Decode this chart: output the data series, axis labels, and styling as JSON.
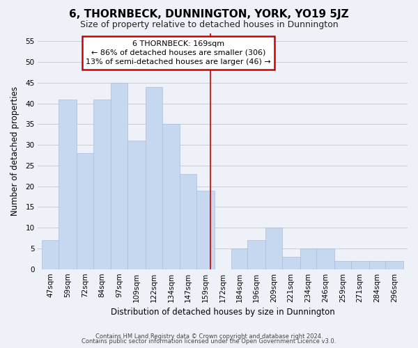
{
  "title": "6, THORNBECK, DUNNINGTON, YORK, YO19 5JZ",
  "subtitle": "Size of property relative to detached houses in Dunnington",
  "xlabel": "Distribution of detached houses by size in Dunnington",
  "ylabel": "Number of detached properties",
  "bar_labels": [
    "47sqm",
    "59sqm",
    "72sqm",
    "84sqm",
    "97sqm",
    "109sqm",
    "122sqm",
    "134sqm",
    "147sqm",
    "159sqm",
    "172sqm",
    "184sqm",
    "196sqm",
    "209sqm",
    "221sqm",
    "234sqm",
    "246sqm",
    "259sqm",
    "271sqm",
    "284sqm",
    "296sqm"
  ],
  "bar_values": [
    7,
    41,
    28,
    41,
    45,
    31,
    44,
    35,
    23,
    19,
    0,
    5,
    7,
    10,
    3,
    5,
    5,
    2,
    2,
    2,
    2
  ],
  "bar_left_edges": [
    47,
    59,
    72,
    84,
    97,
    109,
    122,
    134,
    147,
    159,
    172,
    184,
    196,
    209,
    221,
    234,
    246,
    259,
    271,
    284,
    296
  ],
  "bar_widths": [
    12,
    13,
    12,
    13,
    12,
    13,
    12,
    13,
    12,
    13,
    12,
    12,
    13,
    12,
    13,
    12,
    13,
    12,
    13,
    12,
    13
  ],
  "bar_color": "#c5d8f0",
  "bar_edge_color": "#aabcda",
  "marker_x": 169,
  "marker_label": "6 THORNBECK: 169sqm",
  "annotation_line1": "← 86% of detached houses are smaller (306)",
  "annotation_line2": "13% of semi-detached houses are larger (46) →",
  "annotation_box_facecolor": "#ffffff",
  "annotation_box_edgecolor": "#cc0000",
  "ylim": [
    0,
    57
  ],
  "yticks": [
    0,
    5,
    10,
    15,
    20,
    25,
    30,
    35,
    40,
    45,
    50,
    55
  ],
  "xlim_left": 44,
  "xlim_right": 312,
  "grid_color": "#cccccc",
  "footer1": "Contains HM Land Registry data © Crown copyright and database right 2024.",
  "footer2": "Contains public sector information licensed under the Open Government Licence v3.0.",
  "marker_line_color": "#cc0000",
  "bg_color": "#eef2f8",
  "title_fontsize": 11,
  "subtitle_fontsize": 9,
  "axis_label_fontsize": 8.5,
  "tick_fontsize": 7.5,
  "annotation_fontsize": 8,
  "footer_fontsize": 6
}
